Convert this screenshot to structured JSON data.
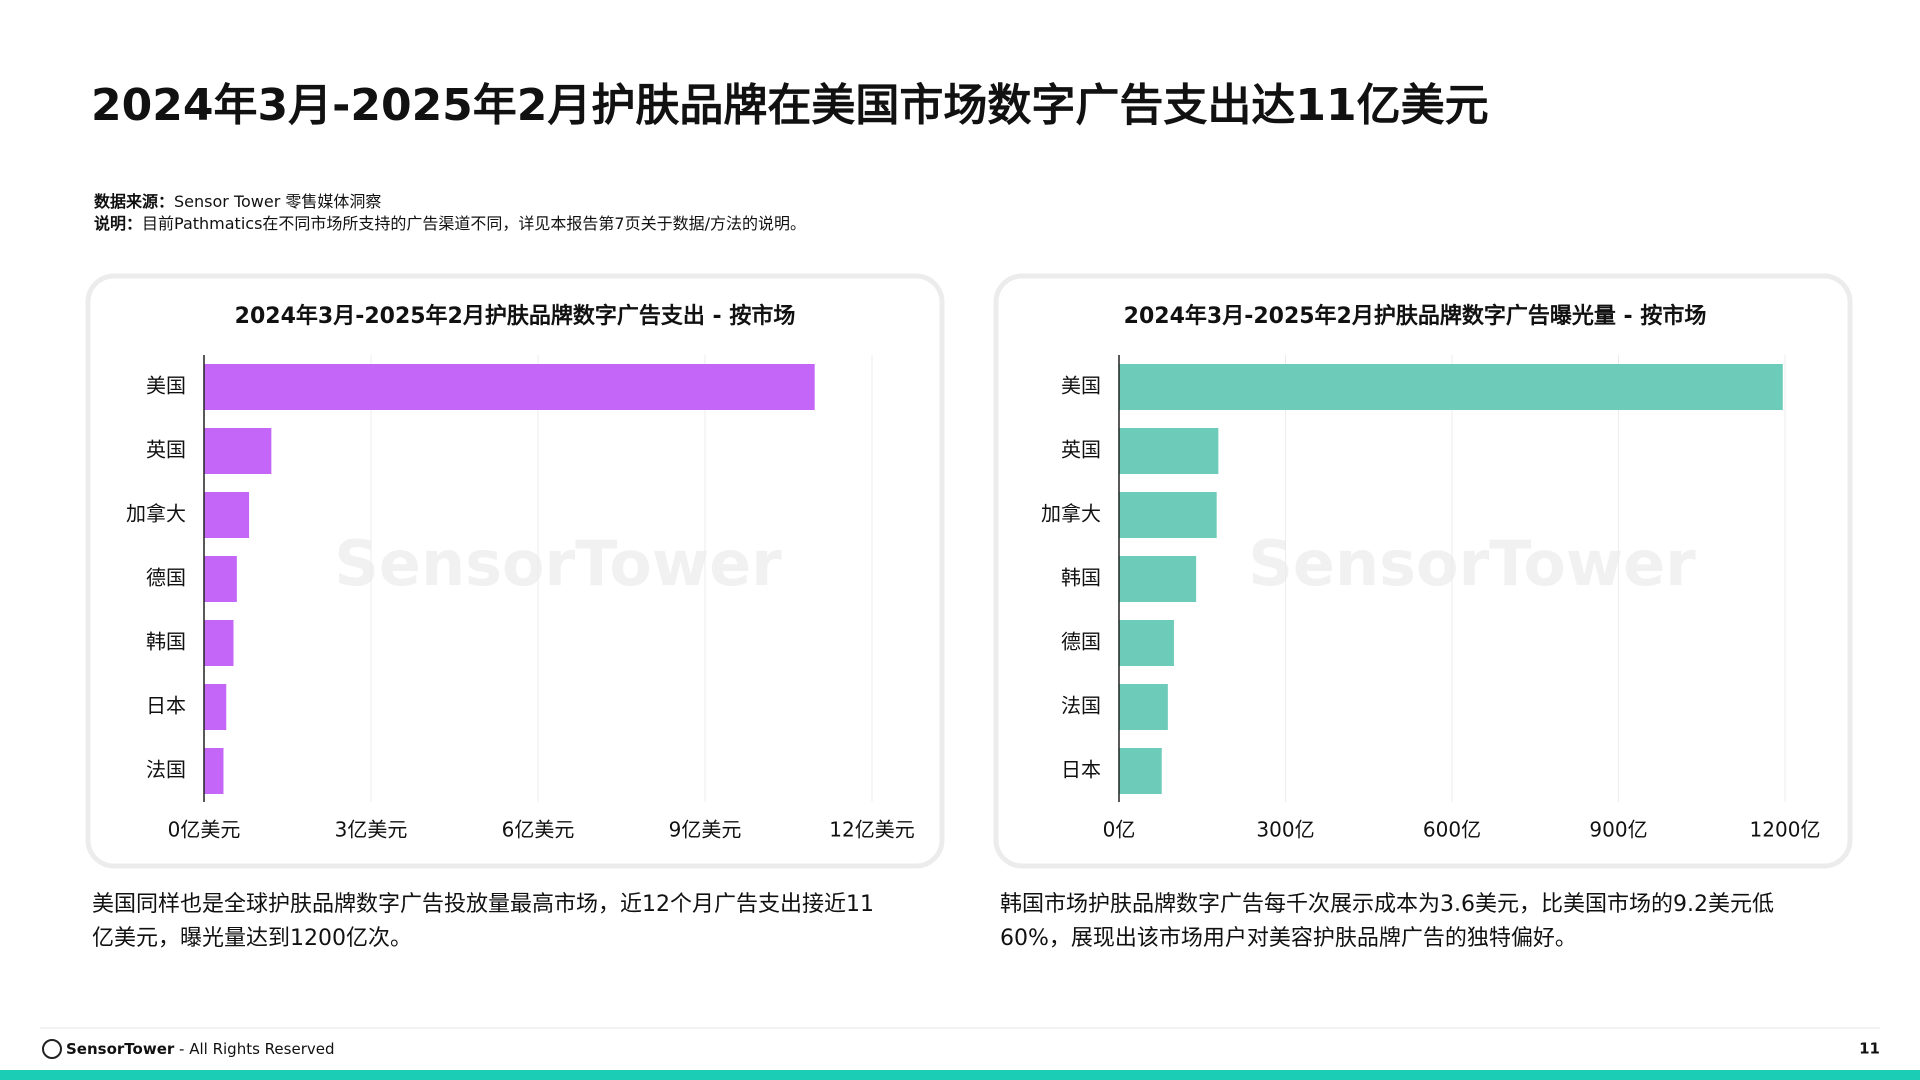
{
  "header": {
    "title": "2024年3月-2025年2月护肤品牌在美国市场数字广告支出达11亿美元",
    "source_label": "数据来源：",
    "source": "Sensor Tower 零售媒体洞察",
    "note_label": "说明：",
    "note": "目前Pathmatics在不同市场所支持的广告渠道不同，详见本报告第7页关于数据/方法的说明。"
  },
  "watermark": "SensorTower",
  "chart_data": [
    {
      "type": "hbar",
      "title": "2024年3月-2025年2月护肤品牌数字广告支出 - 按市场",
      "categories": [
        "美国",
        "英国",
        "加拿大",
        "德国",
        "韩国",
        "日本",
        "法国"
      ],
      "values": [
        10.97,
        1.21,
        0.81,
        0.59,
        0.53,
        0.4,
        0.35
      ],
      "color": "#c466f7",
      "xlim": [
        0,
        12
      ],
      "xticks": [
        {
          "value": 0,
          "label": "0亿美元"
        },
        {
          "value": 3,
          "label": "3亿美元"
        },
        {
          "value": 6,
          "label": "6亿美元"
        },
        {
          "value": 9,
          "label": "9亿美元"
        },
        {
          "value": 12,
          "label": "12亿美元"
        }
      ],
      "grid": true
    },
    {
      "type": "hbar",
      "title": "2024年3月-2025年2月护肤品牌数字广告曝光量 - 按市场",
      "categories": [
        "美国",
        "英国",
        "加拿大",
        "韩国",
        "德国",
        "法国",
        "日本"
      ],
      "values": [
        1196,
        179,
        176,
        139,
        99,
        88,
        77
      ],
      "color": "#6ccbb9",
      "xlim": [
        0,
        1200
      ],
      "xticks": [
        {
          "value": 0,
          "label": "0亿"
        },
        {
          "value": 300,
          "label": "300亿"
        },
        {
          "value": 600,
          "label": "600亿"
        },
        {
          "value": 900,
          "label": "900亿"
        },
        {
          "value": 1200,
          "label": "1200亿"
        }
      ],
      "grid": true
    }
  ],
  "captions": [
    [
      "美国同样也是全球护肤品牌数字广告投放量最高市场，近12个月广告支出接近11",
      "亿美元，曝光量达到1200亿次。"
    ],
    [
      "韩国市场护肤品牌数字广告每千次展示成本为3.6美元，比美国市场的9.2美元低",
      "60%，展现出该市场用户对美容护肤品牌广告的独特偏好。"
    ]
  ],
  "footer": {
    "brand": "SensorTower",
    "text": "- All Rights Reserved",
    "page": "11"
  }
}
